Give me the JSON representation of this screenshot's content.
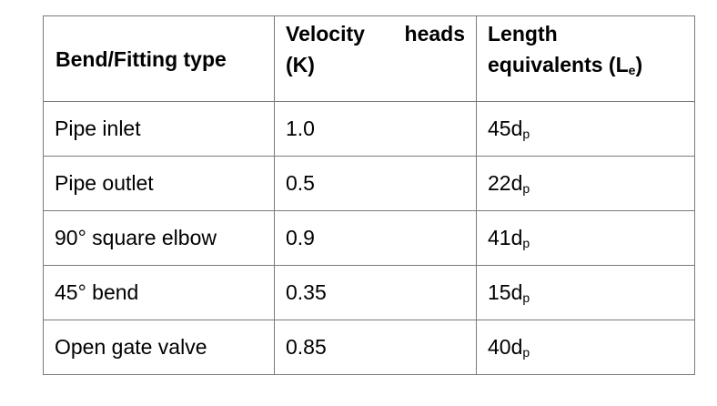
{
  "table": {
    "headers": {
      "fitting": "Bend/Fitting type",
      "velocity_word1": "Velocity",
      "velocity_word2": "heads",
      "velocity_line2": "(K)",
      "length_line1": "Length",
      "length_line2_prefix": "equivalents (L",
      "length_line2_sub": "e",
      "length_line2_suffix": ")"
    },
    "rows": [
      {
        "fitting": "Pipe inlet",
        "k": "1.0",
        "le_value": "45d",
        "le_sub": "p"
      },
      {
        "fitting": "Pipe outlet",
        "k": "0.5",
        "le_value": "22d",
        "le_sub": "p"
      },
      {
        "fitting": "90° square elbow",
        "k": "0.9",
        "le_value": "41d",
        "le_sub": "p"
      },
      {
        "fitting": "45° bend",
        "k": "0.35",
        "le_value": "15d",
        "le_sub": "p"
      },
      {
        "fitting": "Open gate valve",
        "k": "0.85",
        "le_value": "40d",
        "le_sub": "p"
      }
    ]
  }
}
